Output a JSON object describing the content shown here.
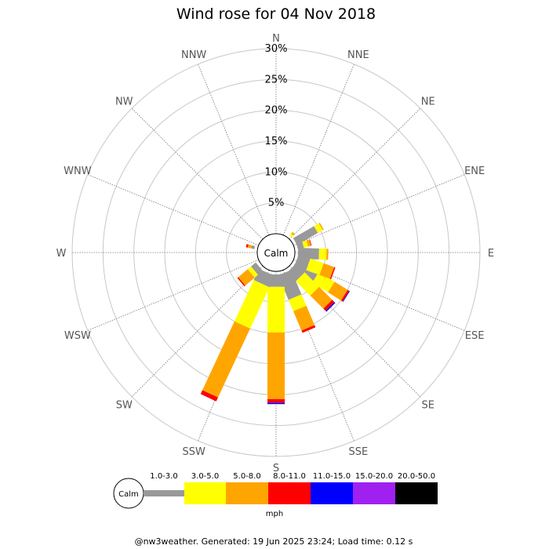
{
  "chart_data": {
    "type": "wind-rose",
    "title": "Wind rose for 04 Nov 2018",
    "directions": [
      "N",
      "NNE",
      "NE",
      "ENE",
      "E",
      "ESE",
      "SE",
      "SSE",
      "S",
      "SSW",
      "SW",
      "WSW",
      "W",
      "WNW",
      "NW",
      "NNW"
    ],
    "ring_labels": [
      "5%",
      "10%",
      "15%",
      "20%",
      "25%",
      "30%"
    ],
    "rmax": 30,
    "calm_label": "Calm",
    "unit": "mph",
    "speed_bins": [
      {
        "label": "1.0-3.0",
        "color": "#999999"
      },
      {
        "label": "3.0-5.0",
        "color": "#ffff00"
      },
      {
        "label": "5.0-8.0",
        "color": "#ffa500"
      },
      {
        "label": "8.0-11.0",
        "color": "#ff0000"
      },
      {
        "label": "11.0-15.0",
        "color": "#0000ff"
      },
      {
        "label": "15.0-20.0",
        "color": "#a020f0"
      },
      {
        "label": "20.0-50.0",
        "color": "#000000"
      }
    ],
    "series": [
      {
        "direction": "N",
        "values": [
          0,
          0,
          0,
          0,
          0,
          0,
          0
        ]
      },
      {
        "direction": "NNE",
        "values": [
          0,
          0,
          0,
          0,
          0,
          0,
          0
        ]
      },
      {
        "direction": "NE",
        "values": [
          3.9,
          0.9,
          0.2,
          0,
          0,
          0,
          0
        ]
      },
      {
        "direction": "ENE",
        "values": [
          0,
          0,
          0,
          0,
          0,
          0,
          0
        ]
      },
      {
        "direction": "E",
        "values": [
          3.4,
          1.2,
          0.3,
          0,
          0,
          0,
          0
        ]
      },
      {
        "direction": "ESE",
        "values": [
          0,
          0,
          0,
          0,
          0,
          0,
          0
        ]
      },
      {
        "direction": "SE",
        "values": [
          4.0,
          3.0,
          2.5,
          0.3,
          0.1,
          0,
          0
        ]
      },
      {
        "direction": "SSE",
        "values": [
          4.3,
          2.0,
          3.4,
          0.4,
          0,
          0,
          0
        ]
      },
      {
        "direction": "S",
        "values": [
          2.0,
          7.4,
          10.8,
          0.6,
          0.2,
          0,
          0
        ]
      },
      {
        "direction": "SSW",
        "values": [
          2.0,
          7.4,
          12.3,
          0.7,
          0,
          0,
          0
        ]
      },
      {
        "direction": "SW",
        "values": [
          0,
          0,
          0,
          0,
          0,
          0,
          0
        ]
      },
      {
        "direction": "WSW",
        "values": [
          0,
          0,
          0,
          0,
          0,
          0,
          0
        ]
      },
      {
        "direction": "W",
        "values": [
          0,
          0,
          0,
          0,
          0,
          0,
          0
        ]
      },
      {
        "direction": "WNW",
        "values": [
          0,
          0,
          0,
          0,
          0,
          0,
          0
        ]
      },
      {
        "direction": "NW",
        "values": [
          0,
          0,
          0,
          0,
          0,
          0,
          0
        ]
      },
      {
        "direction": "NNW",
        "values": [
          0,
          0,
          0,
          0,
          0,
          0,
          0
        ]
      }
    ],
    "intermediate_series": [
      {
        "angle": 67.5,
        "values": [
          0,
          0,
          0,
          0,
          0,
          0,
          0
        ]
      },
      {
        "angle": 135,
        "values": [
          0,
          0,
          0,
          0,
          0,
          0,
          0
        ]
      },
      {
        "angle": 180,
        "values": [
          0,
          0,
          0,
          0,
          0,
          0,
          0
        ]
      }
    ]
  },
  "footer": "@nw3weather. Generated: 19 Jun 2025 23:24; Load time: 0.12 s"
}
